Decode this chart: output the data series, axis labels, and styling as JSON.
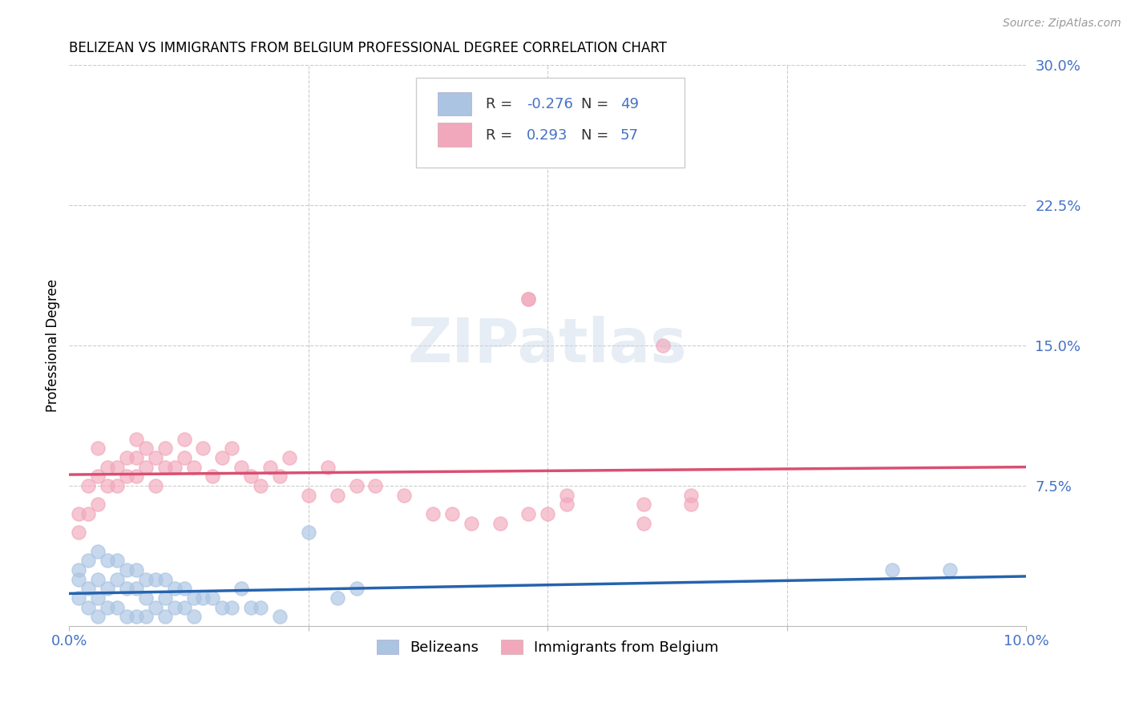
{
  "title": "BELIZEAN VS IMMIGRANTS FROM BELGIUM PROFESSIONAL DEGREE CORRELATION CHART",
  "source": "Source: ZipAtlas.com",
  "ylabel": "Professional Degree",
  "xlim": [
    0.0,
    0.1
  ],
  "ylim": [
    0.0,
    0.3
  ],
  "blue_R": -0.276,
  "blue_N": 49,
  "pink_R": 0.293,
  "pink_N": 57,
  "blue_color": "#aac4e2",
  "pink_color": "#f2a8bc",
  "blue_line_color": "#2563ae",
  "pink_line_color": "#d94f72",
  "watermark": "ZIPatlas",
  "legend_label_blue": "Belizeans",
  "legend_label_pink": "Immigrants from Belgium",
  "blue_x": [
    0.001,
    0.001,
    0.001,
    0.002,
    0.002,
    0.002,
    0.003,
    0.003,
    0.003,
    0.003,
    0.004,
    0.004,
    0.004,
    0.005,
    0.005,
    0.005,
    0.006,
    0.006,
    0.006,
    0.007,
    0.007,
    0.007,
    0.008,
    0.008,
    0.008,
    0.009,
    0.009,
    0.01,
    0.01,
    0.01,
    0.011,
    0.011,
    0.012,
    0.012,
    0.013,
    0.013,
    0.014,
    0.015,
    0.016,
    0.017,
    0.018,
    0.019,
    0.02,
    0.022,
    0.025,
    0.028,
    0.03,
    0.086,
    0.092
  ],
  "blue_y": [
    0.03,
    0.025,
    0.015,
    0.035,
    0.02,
    0.01,
    0.04,
    0.025,
    0.015,
    0.005,
    0.035,
    0.02,
    0.01,
    0.035,
    0.025,
    0.01,
    0.03,
    0.02,
    0.005,
    0.03,
    0.02,
    0.005,
    0.025,
    0.015,
    0.005,
    0.025,
    0.01,
    0.025,
    0.015,
    0.005,
    0.02,
    0.01,
    0.02,
    0.01,
    0.015,
    0.005,
    0.015,
    0.015,
    0.01,
    0.01,
    0.02,
    0.01,
    0.01,
    0.005,
    0.05,
    0.015,
    0.02,
    0.03,
    0.03
  ],
  "pink_x": [
    0.001,
    0.001,
    0.002,
    0.002,
    0.003,
    0.003,
    0.003,
    0.004,
    0.004,
    0.005,
    0.005,
    0.006,
    0.006,
    0.007,
    0.007,
    0.007,
    0.008,
    0.008,
    0.009,
    0.009,
    0.01,
    0.01,
    0.011,
    0.012,
    0.012,
    0.013,
    0.014,
    0.015,
    0.016,
    0.017,
    0.018,
    0.019,
    0.02,
    0.021,
    0.022,
    0.023,
    0.025,
    0.027,
    0.028,
    0.03,
    0.032,
    0.035,
    0.038,
    0.04,
    0.042,
    0.045,
    0.048,
    0.05,
    0.052,
    0.06,
    0.062,
    0.065,
    0.048,
    0.052,
    0.048,
    0.06,
    0.065
  ],
  "pink_y": [
    0.06,
    0.05,
    0.075,
    0.06,
    0.08,
    0.065,
    0.095,
    0.075,
    0.085,
    0.075,
    0.085,
    0.08,
    0.09,
    0.08,
    0.09,
    0.1,
    0.085,
    0.095,
    0.09,
    0.075,
    0.085,
    0.095,
    0.085,
    0.09,
    0.1,
    0.085,
    0.095,
    0.08,
    0.09,
    0.095,
    0.085,
    0.08,
    0.075,
    0.085,
    0.08,
    0.09,
    0.07,
    0.085,
    0.07,
    0.075,
    0.075,
    0.07,
    0.06,
    0.06,
    0.055,
    0.055,
    0.175,
    0.06,
    0.065,
    0.055,
    0.15,
    0.065,
    0.06,
    0.07,
    0.175,
    0.065,
    0.07
  ]
}
